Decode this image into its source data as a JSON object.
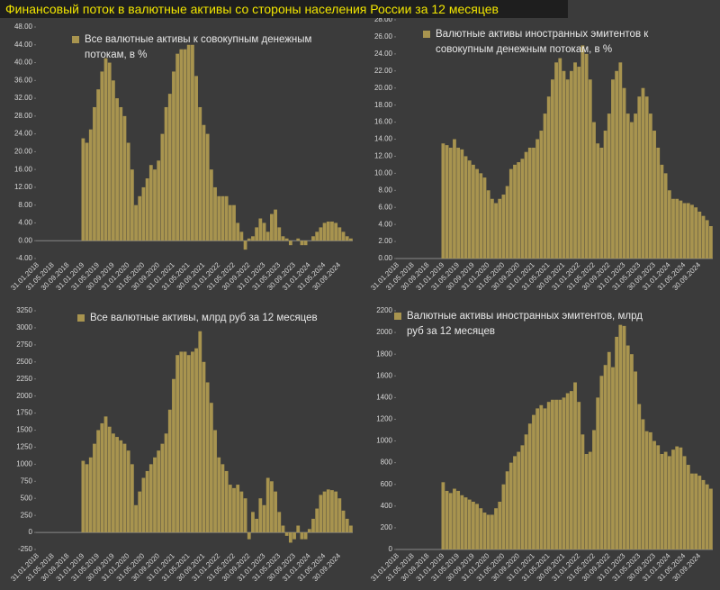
{
  "title": "Финансовый поток в валютные активы со стороны населения России за 12 месяцев",
  "chart_data": [
    {
      "type": "bar",
      "categories": [
        "31.01.2018",
        null,
        null,
        null,
        "31.05.2018",
        null,
        null,
        null,
        "30.09.2018",
        null,
        null,
        null,
        "31.01.2019",
        null,
        null,
        null,
        "31.05.2019",
        null,
        null,
        null,
        "30.09.2019",
        null,
        null,
        null,
        "31.01.2020",
        null,
        null,
        null,
        "31.05.2020",
        null,
        null,
        null,
        "30.09.2020",
        null,
        null,
        null,
        "31.01.2021",
        null,
        null,
        null,
        "31.05.2021",
        null,
        null,
        null,
        "30.09.2021",
        null,
        null,
        null,
        "31.01.2022",
        null,
        null,
        null,
        "31.05.2022",
        null,
        null,
        null,
        "30.09.2022",
        null,
        null,
        null,
        "31.01.2023",
        null,
        null,
        null,
        "31.05.2023",
        null,
        null,
        null,
        "30.09.2023",
        null,
        null,
        null,
        "31.01.2024",
        null,
        null,
        null,
        "31.05.2024",
        null,
        null,
        null,
        "30.09.2024",
        null,
        null,
        null
      ],
      "series": [
        {
          "name": "Все валютные активы к совокупным денежным потокам, в %",
          "color": "#a8944f",
          "values": [
            null,
            null,
            null,
            null,
            null,
            null,
            null,
            null,
            null,
            null,
            null,
            null,
            23,
            22,
            25,
            30,
            34,
            38,
            41,
            40,
            36,
            32,
            30,
            28,
            22,
            16,
            8,
            10,
            12,
            14,
            17,
            16,
            18,
            24,
            30,
            33,
            38,
            42,
            43,
            43,
            44,
            44,
            37,
            30,
            26,
            24,
            16,
            12,
            10,
            10,
            10,
            8,
            8,
            4,
            2,
            -2,
            0.5,
            1,
            3,
            5,
            4,
            2,
            6,
            7,
            3,
            1,
            0.5,
            -1,
            0,
            0.5,
            -1,
            -1,
            0,
            1,
            2,
            3,
            4,
            4.3,
            4.3,
            4,
            3,
            2,
            1,
            0.5
          ]
        }
      ],
      "ylim": [
        -4,
        48
      ],
      "yticks": [
        {
          "value": -4,
          "label": "-4.00"
        },
        {
          "value": 0,
          "label": "0.00"
        },
        {
          "value": 4,
          "label": "4.00"
        },
        {
          "value": 8,
          "label": "8.00"
        },
        {
          "value": 12,
          "label": "12.00"
        },
        {
          "value": 16,
          "label": "16.00"
        },
        {
          "value": 20,
          "label": "20.00"
        },
        {
          "value": 24,
          "label": "24.00"
        },
        {
          "value": 28,
          "label": "28.00"
        },
        {
          "value": 32,
          "label": "32.00"
        },
        {
          "value": 36,
          "label": "36.00"
        },
        {
          "value": 40,
          "label": "40.00"
        },
        {
          "value": 44,
          "label": "44.00"
        },
        {
          "value": 48,
          "label": "48.00"
        }
      ]
    },
    {
      "type": "bar",
      "categories": [
        "31.01.2018",
        null,
        null,
        null,
        "31.05.2018",
        null,
        null,
        null,
        "30.09.2018",
        null,
        null,
        null,
        "31.01.2019",
        null,
        null,
        null,
        "31.05.2019",
        null,
        null,
        null,
        "30.09.2019",
        null,
        null,
        null,
        "31.01.2020",
        null,
        null,
        null,
        "31.05.2020",
        null,
        null,
        null,
        "30.09.2020",
        null,
        null,
        null,
        "31.01.2021",
        null,
        null,
        null,
        "31.05.2021",
        null,
        null,
        null,
        "30.09.2021",
        null,
        null,
        null,
        "31.01.2022",
        null,
        null,
        null,
        "31.05.2022",
        null,
        null,
        null,
        "30.09.2022",
        null,
        null,
        null,
        "31.01.2023",
        null,
        null,
        null,
        "31.05.2023",
        null,
        null,
        null,
        "30.09.2023",
        null,
        null,
        null,
        "31.01.2024",
        null,
        null,
        null,
        "31.05.2024",
        null,
        null,
        null,
        "30.09.2024",
        null,
        null,
        null
      ],
      "series": [
        {
          "name": "Валютные активы иностранных эмитентов к совокупным денежным потокам, в %",
          "color": "#a8944f",
          "values": [
            null,
            null,
            null,
            null,
            null,
            null,
            null,
            null,
            null,
            null,
            null,
            null,
            13.5,
            13.3,
            13,
            14,
            13,
            12.8,
            12,
            11.5,
            11,
            10.5,
            10,
            9.5,
            8,
            7,
            6.5,
            7,
            7.5,
            8.5,
            10.5,
            11,
            11.3,
            11.7,
            12.5,
            13,
            13,
            14,
            15,
            17,
            19,
            21,
            23,
            23.5,
            22,
            21,
            22,
            23,
            22.5,
            25,
            24,
            21,
            16,
            13.5,
            13,
            15,
            17,
            21,
            22,
            23,
            20,
            17,
            16,
            17,
            19,
            20,
            19,
            17,
            15,
            13,
            11,
            10,
            8,
            7,
            7,
            6.8,
            6.5,
            6.5,
            6.3,
            6,
            5.5,
            5,
            4.5,
            3.8
          ]
        }
      ],
      "ylim": [
        0,
        28
      ],
      "yticks": [
        {
          "value": 0,
          "label": "0.00"
        },
        {
          "value": 2,
          "label": "2.00"
        },
        {
          "value": 4,
          "label": "4.00"
        },
        {
          "value": 6,
          "label": "6.00"
        },
        {
          "value": 8,
          "label": "8.00"
        },
        {
          "value": 10,
          "label": "10.00"
        },
        {
          "value": 12,
          "label": "12.00"
        },
        {
          "value": 14,
          "label": "14.00"
        },
        {
          "value": 16,
          "label": "16.00"
        },
        {
          "value": 18,
          "label": "18.00"
        },
        {
          "value": 20,
          "label": "20.00"
        },
        {
          "value": 22,
          "label": "22.00"
        },
        {
          "value": 24,
          "label": "24.00"
        },
        {
          "value": 26,
          "label": "26.00"
        },
        {
          "value": 28,
          "label": "28.00"
        }
      ]
    },
    {
      "type": "bar",
      "categories": [
        "31.01.2018",
        null,
        null,
        null,
        "31.05.2018",
        null,
        null,
        null,
        "30.09.2018",
        null,
        null,
        null,
        "31.01.2019",
        null,
        null,
        null,
        "31.05.2019",
        null,
        null,
        null,
        "30.09.2019",
        null,
        null,
        null,
        "31.01.2020",
        null,
        null,
        null,
        "31.05.2020",
        null,
        null,
        null,
        "30.09.2020",
        null,
        null,
        null,
        "31.01.2021",
        null,
        null,
        null,
        "31.05.2021",
        null,
        null,
        null,
        "30.09.2021",
        null,
        null,
        null,
        "31.01.2022",
        null,
        null,
        null,
        "31.05.2022",
        null,
        null,
        null,
        "30.09.2022",
        null,
        null,
        null,
        "31.01.2023",
        null,
        null,
        null,
        "31.05.2023",
        null,
        null,
        null,
        "30.09.2023",
        null,
        null,
        null,
        "31.01.2024",
        null,
        null,
        null,
        "31.05.2024",
        null,
        null,
        null,
        "30.09.2024",
        null,
        null,
        null
      ],
      "series": [
        {
          "name": "Все валютные активы, млрд руб за 12 месяцев",
          "color": "#a8944f",
          "values": [
            null,
            null,
            null,
            null,
            null,
            null,
            null,
            null,
            null,
            null,
            null,
            null,
            1050,
            1000,
            1100,
            1300,
            1500,
            1600,
            1700,
            1550,
            1450,
            1400,
            1350,
            1300,
            1200,
            1000,
            400,
            600,
            800,
            900,
            1000,
            1100,
            1200,
            1300,
            1450,
            1800,
            2250,
            2600,
            2650,
            2650,
            2600,
            2650,
            2700,
            2950,
            2500,
            2200,
            1900,
            1500,
            1100,
            1000,
            900,
            700,
            650,
            700,
            600,
            500,
            -100,
            300,
            200,
            500,
            400,
            800,
            750,
            600,
            300,
            100,
            -50,
            -150,
            -100,
            100,
            -100,
            -100,
            50,
            200,
            350,
            550,
            600,
            630,
            620,
            600,
            500,
            320,
            200,
            100
          ]
        }
      ],
      "ylim": [
        -250,
        3250
      ],
      "yticks": [
        -250,
        0,
        250,
        500,
        750,
        1000,
        1250,
        1500,
        1750,
        2000,
        2250,
        2500,
        2750,
        3000,
        3250
      ]
    },
    {
      "type": "bar",
      "categories": [
        "31.01.2018",
        null,
        null,
        null,
        "31.05.2018",
        null,
        null,
        null,
        "30.09.2018",
        null,
        null,
        null,
        "31.01.2019",
        null,
        null,
        null,
        "31.05.2019",
        null,
        null,
        null,
        "30.09.2019",
        null,
        null,
        null,
        "31.01.2020",
        null,
        null,
        null,
        "31.05.2020",
        null,
        null,
        null,
        "30.09.2020",
        null,
        null,
        null,
        "31.01.2021",
        null,
        null,
        null,
        "31.05.2021",
        null,
        null,
        null,
        "30.09.2021",
        null,
        null,
        null,
        "31.01.2022",
        null,
        null,
        null,
        "31.05.2022",
        null,
        null,
        null,
        "30.09.2022",
        null,
        null,
        null,
        "31.01.2023",
        null,
        null,
        null,
        "31.05.2023",
        null,
        null,
        null,
        "30.09.2023",
        null,
        null,
        null,
        "31.01.2024",
        null,
        null,
        null,
        "31.05.2024",
        null,
        null,
        null,
        "30.09.2024",
        null,
        null,
        null
      ],
      "series": [
        {
          "name": "Валютные активы иностранных эмитентов, млрд руб за 12 месяцев",
          "color": "#a8944f",
          "values": [
            null,
            null,
            null,
            null,
            null,
            null,
            null,
            null,
            null,
            null,
            null,
            null,
            620,
            540,
            520,
            560,
            540,
            500,
            480,
            460,
            440,
            420,
            380,
            340,
            320,
            320,
            380,
            440,
            600,
            720,
            800,
            860,
            900,
            960,
            1060,
            1160,
            1240,
            1300,
            1330,
            1300,
            1360,
            1380,
            1380,
            1380,
            1400,
            1440,
            1460,
            1540,
            1360,
            1060,
            880,
            900,
            1100,
            1400,
            1600,
            1700,
            1820,
            1680,
            1960,
            2070,
            2060,
            1880,
            1800,
            1640,
            1340,
            1200,
            1090,
            1080,
            1000,
            960,
            880,
            900,
            860,
            920,
            950,
            940,
            860,
            780,
            700,
            700,
            680,
            640,
            600,
            560
          ]
        }
      ],
      "ylim": [
        0,
        2200
      ],
      "yticks": [
        0,
        200,
        400,
        600,
        800,
        1000,
        1200,
        1400,
        1600,
        1800,
        2000,
        2200
      ]
    }
  ]
}
